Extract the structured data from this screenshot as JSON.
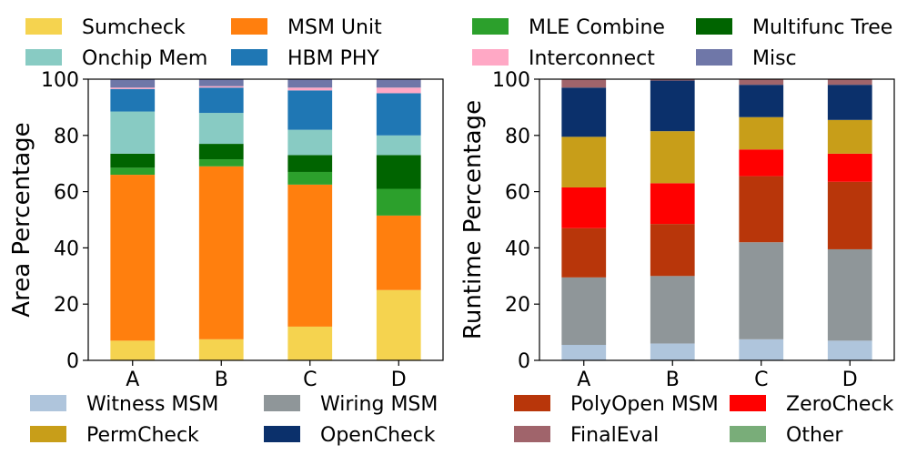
{
  "chart_data": [
    {
      "type": "bar",
      "stacked": true,
      "ylabel": "Area Percentage",
      "xlabel": "",
      "ylim": [
        0,
        100
      ],
      "yticks": [
        0,
        20,
        40,
        60,
        80,
        100
      ],
      "categories": [
        "A",
        "B",
        "C",
        "D"
      ],
      "legend_position": "top",
      "series": [
        {
          "name": "Sumcheck",
          "color": "#f5d34f",
          "values": [
            7,
            7.5,
            12,
            25
          ]
        },
        {
          "name": "MSM Unit",
          "color": "#ff7f0e",
          "values": [
            59,
            61.5,
            50.5,
            26.5
          ]
        },
        {
          "name": "MLE Combine",
          "color": "#2ca02c",
          "values": [
            2.5,
            2.5,
            4.5,
            9.5
          ]
        },
        {
          "name": "Multifunc Tree",
          "color": "#006400",
          "values": [
            5,
            5.5,
            6,
            12
          ]
        },
        {
          "name": "Onchip Mem",
          "color": "#88cbc3",
          "values": [
            15,
            11,
            9,
            7
          ]
        },
        {
          "name": "HBM PHY",
          "color": "#1f77b4",
          "values": [
            8,
            9,
            14,
            15
          ]
        },
        {
          "name": "Interconnect",
          "color": "#ffa8c5",
          "values": [
            0.5,
            0.5,
            1,
            2
          ]
        },
        {
          "name": "Misc",
          "color": "#6f77a8",
          "values": [
            3,
            2.5,
            3,
            3
          ]
        }
      ]
    },
    {
      "type": "bar",
      "stacked": true,
      "ylabel": "Runtime Percentage",
      "xlabel": "",
      "ylim": [
        0,
        100
      ],
      "yticks": [
        0,
        20,
        40,
        60,
        80,
        100
      ],
      "categories": [
        "A",
        "B",
        "C",
        "D"
      ],
      "legend_position": "bottom",
      "series": [
        {
          "name": "Witness MSM",
          "color": "#afc5dc",
          "values": [
            5.5,
            6,
            7.5,
            7
          ]
        },
        {
          "name": "Wiring MSM",
          "color": "#8f9699",
          "values": [
            24,
            24,
            34.5,
            32.5
          ]
        },
        {
          "name": "PolyOpen MSM",
          "color": "#b8360a",
          "values": [
            17.5,
            18.5,
            23.5,
            24
          ]
        },
        {
          "name": "ZeroCheck",
          "color": "#ff0000",
          "values": [
            14.5,
            14.5,
            9.5,
            10
          ]
        },
        {
          "name": "PermCheck",
          "color": "#c89e19",
          "values": [
            18,
            18.5,
            11.5,
            12
          ]
        },
        {
          "name": "OpenCheck",
          "color": "#0b306b",
          "values": [
            17.5,
            18,
            11.5,
            12.5
          ]
        },
        {
          "name": "FinalEval",
          "color": "#a0646b",
          "values": [
            3,
            0.5,
            2,
            2
          ]
        },
        {
          "name": "Other",
          "color": "#79ad79",
          "values": [
            0,
            0,
            0,
            0
          ]
        }
      ]
    }
  ]
}
